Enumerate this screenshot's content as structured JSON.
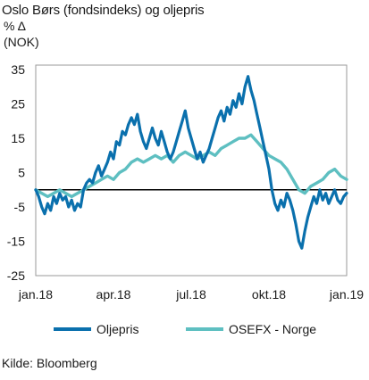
{
  "chart_data": {
    "type": "line",
    "title": "Oslo Børs (fondsindeks) og oljepris",
    "ylabel_line1": "% Δ",
    "ylabel_line2": "(NOK)",
    "source": "Kilde: Bloomberg",
    "ylim": [
      -25,
      35
    ],
    "yticks": [
      35,
      25,
      15,
      5,
      -5,
      -15,
      -25
    ],
    "xlim_weeks": [
      0,
      52
    ],
    "xticks": [
      {
        "label": "jan.18",
        "week": 0
      },
      {
        "label": "apr.18",
        "week": 13
      },
      {
        "label": "jul.18",
        "week": 26
      },
      {
        "label": "okt.18",
        "week": 39
      },
      {
        "label": "jan.19",
        "week": 52
      }
    ],
    "zero_line": true,
    "grid": false,
    "legend_position": "bottom",
    "series": [
      {
        "name": "Oljepris",
        "color": "#0a70ad",
        "values": [
          [
            0,
            0
          ],
          [
            0.5,
            -2
          ],
          [
            1,
            -5
          ],
          [
            1.5,
            -7
          ],
          [
            2,
            -4
          ],
          [
            2.5,
            -6
          ],
          [
            3,
            -2
          ],
          [
            3.5,
            -4
          ],
          [
            4,
            -1
          ],
          [
            4.5,
            -3
          ],
          [
            5,
            -2
          ],
          [
            5.5,
            -5
          ],
          [
            6,
            -3
          ],
          [
            6.5,
            -6
          ],
          [
            7,
            -4
          ],
          [
            7.5,
            -5
          ],
          [
            8,
            0
          ],
          [
            8.5,
            2
          ],
          [
            9,
            3
          ],
          [
            9.5,
            2
          ],
          [
            10,
            5
          ],
          [
            10.5,
            7
          ],
          [
            11,
            4
          ],
          [
            11.5,
            6
          ],
          [
            12,
            8
          ],
          [
            12.5,
            11
          ],
          [
            13,
            9
          ],
          [
            13.5,
            14
          ],
          [
            14,
            13
          ],
          [
            14.5,
            17
          ],
          [
            15,
            16
          ],
          [
            15.5,
            19
          ],
          [
            16,
            21
          ],
          [
            16.5,
            19
          ],
          [
            17,
            22
          ],
          [
            17.5,
            17
          ],
          [
            18,
            14
          ],
          [
            18.5,
            12
          ],
          [
            19,
            15
          ],
          [
            19.5,
            18
          ],
          [
            20,
            15
          ],
          [
            20.5,
            13
          ],
          [
            21,
            17
          ],
          [
            21.5,
            14
          ],
          [
            22,
            11
          ],
          [
            22.5,
            9
          ],
          [
            23,
            11
          ],
          [
            23.5,
            14
          ],
          [
            24,
            17
          ],
          [
            24.5,
            20
          ],
          [
            25,
            23
          ],
          [
            25.5,
            18
          ],
          [
            26,
            15
          ],
          [
            26.5,
            12
          ],
          [
            27,
            9
          ],
          [
            27.5,
            11
          ],
          [
            28,
            8
          ],
          [
            28.5,
            10
          ],
          [
            29,
            12
          ],
          [
            29.5,
            15
          ],
          [
            30,
            18
          ],
          [
            30.5,
            21
          ],
          [
            31,
            23
          ],
          [
            31.5,
            20
          ],
          [
            32,
            24
          ],
          [
            32.5,
            22
          ],
          [
            33,
            26
          ],
          [
            33.5,
            24
          ],
          [
            34,
            28
          ],
          [
            34.5,
            25
          ],
          [
            35,
            30
          ],
          [
            35.5,
            33
          ],
          [
            36,
            29
          ],
          [
            36.5,
            26
          ],
          [
            37,
            22
          ],
          [
            37.5,
            18
          ],
          [
            38,
            14
          ],
          [
            38.5,
            10
          ],
          [
            39,
            6
          ],
          [
            39.5,
            0
          ],
          [
            40,
            -4
          ],
          [
            40.5,
            -6
          ],
          [
            41,
            -3
          ],
          [
            41.5,
            -5
          ],
          [
            42,
            -1
          ],
          [
            42.5,
            -3
          ],
          [
            43,
            -6
          ],
          [
            43.5,
            -10
          ],
          [
            44,
            -15
          ],
          [
            44.5,
            -17
          ],
          [
            45,
            -12
          ],
          [
            45.5,
            -8
          ],
          [
            46,
            -5
          ],
          [
            46.5,
            -2
          ],
          [
            47,
            -4
          ],
          [
            47.5,
            0
          ],
          [
            48,
            -3
          ],
          [
            48.5,
            -1
          ],
          [
            49,
            -4
          ],
          [
            49.5,
            -2
          ],
          [
            50,
            0
          ],
          [
            50.5,
            -3
          ],
          [
            51,
            -4
          ],
          [
            51.5,
            -2
          ],
          [
            52,
            -1
          ]
        ]
      },
      {
        "name": "OSEFX - Norge",
        "color": "#5ebfc1",
        "values": [
          [
            0,
            0
          ],
          [
            1,
            -1
          ],
          [
            2,
            -2
          ],
          [
            3,
            -1
          ],
          [
            4,
            0
          ],
          [
            5,
            -1
          ],
          [
            6,
            -2
          ],
          [
            7,
            -1
          ],
          [
            8,
            0
          ],
          [
            9,
            1
          ],
          [
            10,
            2
          ],
          [
            11,
            3
          ],
          [
            12,
            4
          ],
          [
            13,
            3
          ],
          [
            14,
            5
          ],
          [
            15,
            6
          ],
          [
            16,
            8
          ],
          [
            17,
            9
          ],
          [
            18,
            8
          ],
          [
            19,
            9
          ],
          [
            20,
            10
          ],
          [
            21,
            9
          ],
          [
            22,
            10
          ],
          [
            23,
            8
          ],
          [
            24,
            10
          ],
          [
            25,
            11
          ],
          [
            26,
            10
          ],
          [
            27,
            9
          ],
          [
            28,
            10
          ],
          [
            29,
            11
          ],
          [
            30,
            10
          ],
          [
            31,
            12
          ],
          [
            32,
            13
          ],
          [
            33,
            14
          ],
          [
            34,
            15
          ],
          [
            35,
            15
          ],
          [
            36,
            16
          ],
          [
            37,
            14
          ],
          [
            38,
            12
          ],
          [
            39,
            10
          ],
          [
            40,
            9
          ],
          [
            41,
            8
          ],
          [
            42,
            6
          ],
          [
            43,
            3
          ],
          [
            44,
            0
          ],
          [
            45,
            -1
          ],
          [
            46,
            1
          ],
          [
            47,
            2
          ],
          [
            48,
            3
          ],
          [
            49,
            5
          ],
          [
            50,
            6
          ],
          [
            51,
            4
          ],
          [
            52,
            3
          ]
        ]
      }
    ]
  },
  "legend": [
    {
      "label": "Oljepris",
      "color": "#0a70ad"
    },
    {
      "label": "OSEFX - Norge",
      "color": "#5ebfc1"
    }
  ]
}
